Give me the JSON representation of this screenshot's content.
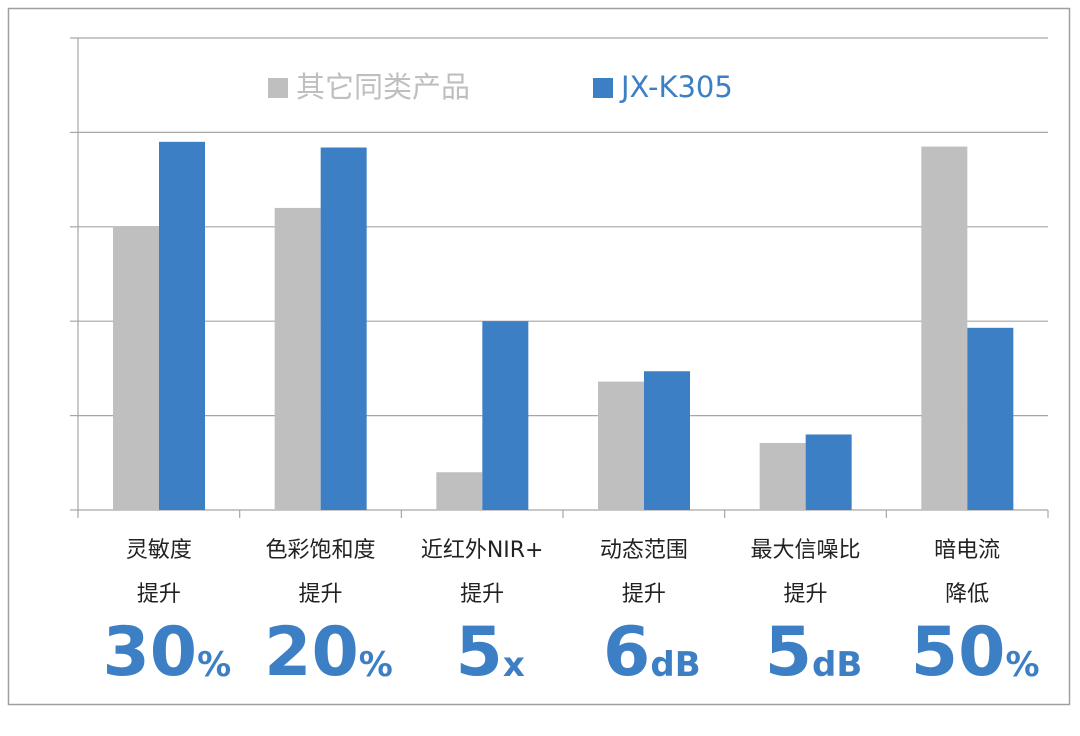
{
  "chart_data": {
    "type": "bar",
    "categories": [
      [
        "灵敏度",
        "提升"
      ],
      [
        "色彩饱和度",
        "提升"
      ],
      [
        "近红外NIR+",
        "提升"
      ],
      [
        "动态范围",
        "提升"
      ],
      [
        "最大信噪比",
        "提升"
      ],
      [
        "暗电流",
        "降低"
      ]
    ],
    "series": [
      {
        "name": "其它同类产品",
        "color": "#bfbfbf",
        "values": [
          3.0,
          3.2,
          0.4,
          1.36,
          0.71,
          3.85
        ]
      },
      {
        "name": "JX-K305",
        "color": "#3d7fc4",
        "values": [
          3.9,
          3.84,
          2.0,
          1.47,
          0.8,
          1.93
        ]
      }
    ],
    "highlights": [
      {
        "number": "30",
        "unit": "%"
      },
      {
        "number": "20",
        "unit": "%"
      },
      {
        "number": "5",
        "unit": "x"
      },
      {
        "number": "6",
        "unit": "dB"
      },
      {
        "number": "5",
        "unit": "dB"
      },
      {
        "number": "50",
        "unit": "%"
      }
    ],
    "ylim": [
      0,
      5
    ],
    "yticks": [
      0,
      1,
      2,
      3,
      4,
      5
    ],
    "grid": true
  }
}
